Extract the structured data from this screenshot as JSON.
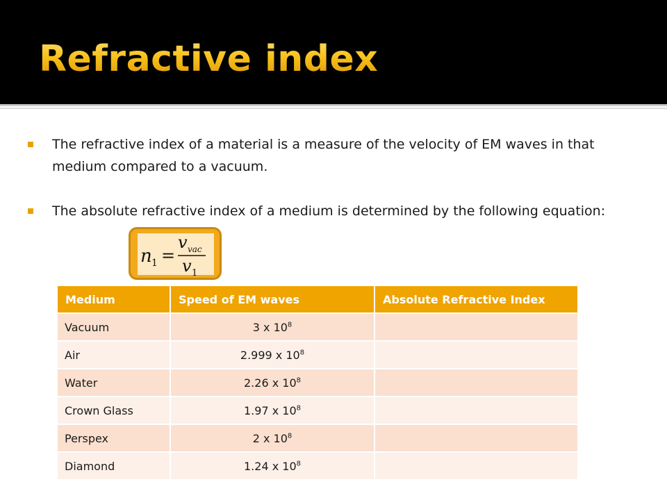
{
  "slide": {
    "title": "Refractive index",
    "colors": {
      "title_bar": "#000000",
      "title_text": "#f4b400",
      "accent": "#f0a400"
    }
  },
  "bullets": [
    "The refractive index of a material is a measure of the velocity of EM waves in that medium compared to a vacuum.",
    "The absolute refractive index of a medium is determined by the following equation:"
  ],
  "formula": {
    "lhs": "n",
    "lhs_sub": "1",
    "equals": "=",
    "numerator": "v",
    "numerator_sub": "vac",
    "denominator": "v",
    "denominator_sub": "1"
  },
  "table": {
    "headers": [
      "Medium",
      "Speed of EM waves",
      "Absolute Refractive Index"
    ],
    "rows": [
      {
        "medium": "Vacuum",
        "speed_mantissa": "3 x 10",
        "speed_exp": "8",
        "index": ""
      },
      {
        "medium": "Air",
        "speed_mantissa": "2.999 x 10",
        "speed_exp": "8",
        "index": ""
      },
      {
        "medium": "Water",
        "speed_mantissa": "2.26 x 10",
        "speed_exp": "8",
        "index": ""
      },
      {
        "medium": "Crown Glass",
        "speed_mantissa": "1.97 x 10",
        "speed_exp": "8",
        "index": ""
      },
      {
        "medium": "Perspex",
        "speed_mantissa": "2 x 10",
        "speed_exp": "8",
        "index": ""
      },
      {
        "medium": "Diamond",
        "speed_mantissa": "1.24 x 10",
        "speed_exp": "8",
        "index": ""
      }
    ]
  }
}
